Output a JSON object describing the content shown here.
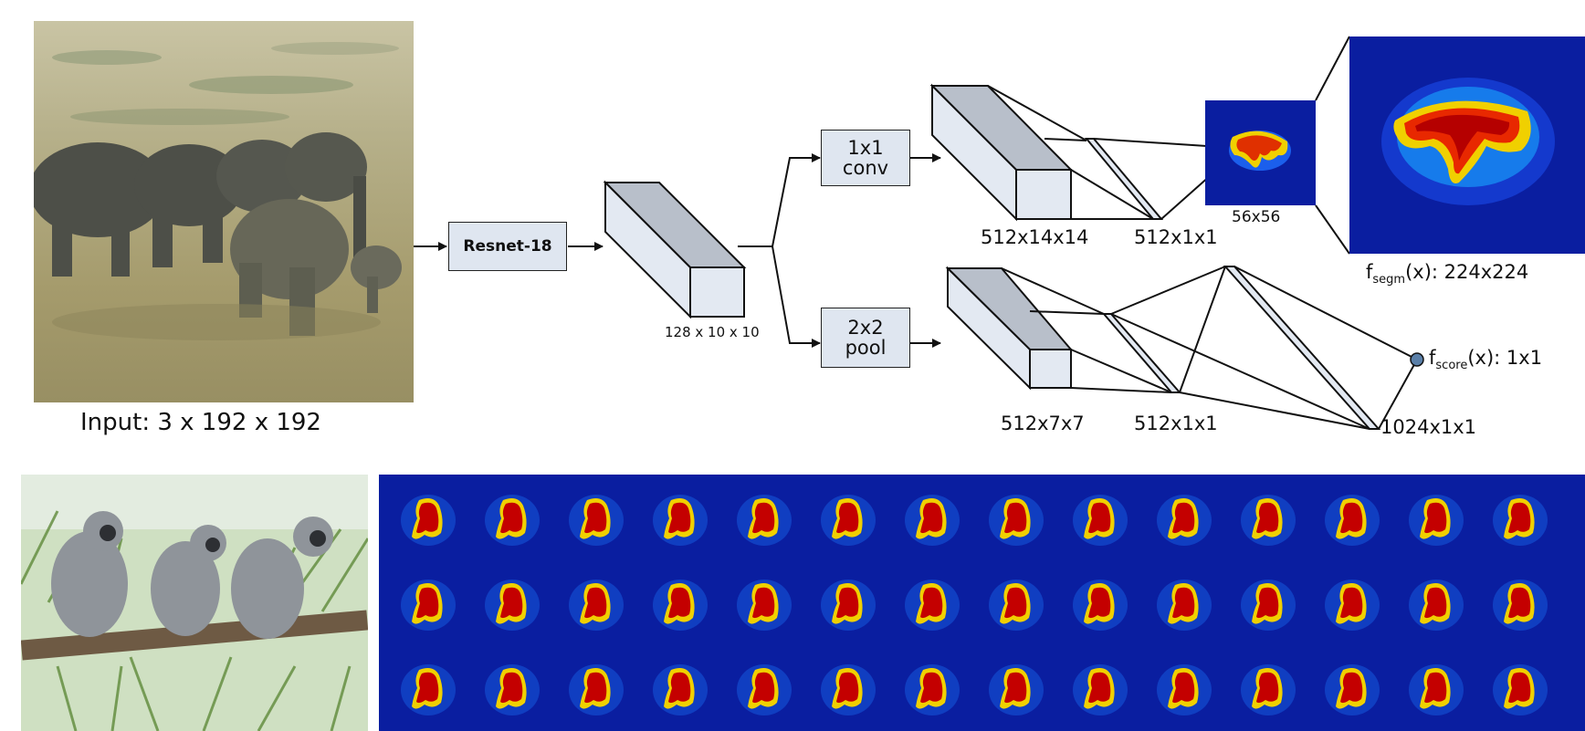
{
  "input_label": "Input: 3 x 192 x 192",
  "resnet_label": "Resnet-18",
  "feature_label": "128 x 10 x 10",
  "conv_box": {
    "line1": "1x1",
    "line2": "conv"
  },
  "pool_box": {
    "line1": "2x2",
    "line2": "pool"
  },
  "segm_branch": {
    "block_label": "512x14x14",
    "vec_label": "512x1x1",
    "small_map_label": "56x56"
  },
  "segm_output": {
    "prefix": "f",
    "sub": "segm",
    "suffix": "(x): 224x224"
  },
  "score_branch": {
    "block_label": "512x7x7",
    "vec_label": "512x1x1",
    "fc_label": "1024x1x1"
  },
  "score_output": {
    "prefix": "f",
    "sub": "score",
    "suffix": "(x): 1x1"
  },
  "colors": {
    "box_fill": "#dfe6f0",
    "heatmap_bg": "#0a1ea0",
    "mask_core": "#c40000",
    "mask_edge": "#f0d000",
    "score_dot": "#5a7fa8"
  },
  "icons": [
    "arrow-icon",
    "elephant-photo",
    "monkey-photo",
    "heatmap-mask"
  ]
}
